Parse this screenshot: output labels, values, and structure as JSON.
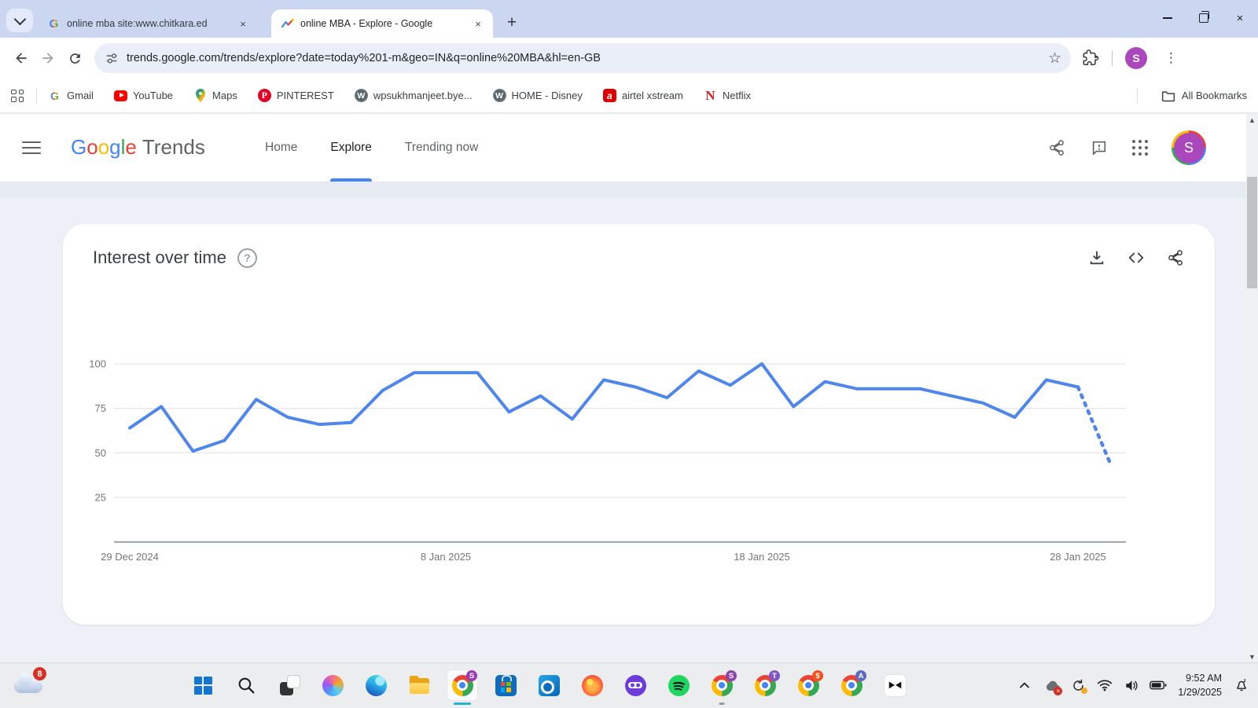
{
  "browser": {
    "tabs": [
      {
        "title": "online mba site:www.chitkara.ed",
        "favicon": "google-favicon",
        "active": false
      },
      {
        "title": "online MBA - Explore - Google",
        "favicon": "trends-favicon",
        "active": true
      }
    ],
    "url": "trends.google.com/trends/explore?date=today%201-m&geo=IN&q=online%20MBA&hl=en-GB",
    "avatar_letter": "S",
    "avatar_color": "#ab47bc",
    "window_controls": [
      "minimize",
      "maximize",
      "close"
    ],
    "toolbar_icons": [
      "back-icon",
      "forward-icon",
      "reload-icon",
      "site-info-icon",
      "bookmark-star-icon",
      "extensions-icon",
      "menu-kebab-icon"
    ],
    "bookmarks": [
      {
        "label": "Gmail",
        "icon": "gmail"
      },
      {
        "label": "YouTube",
        "icon": "youtube"
      },
      {
        "label": "Maps",
        "icon": "maps"
      },
      {
        "label": "PINTEREST",
        "icon": "pinterest"
      },
      {
        "label": "wpsukhmanjeet.bye...",
        "icon": "wordpress"
      },
      {
        "label": "HOME - Disney",
        "icon": "wordpress"
      },
      {
        "label": "airtel xstream",
        "icon": "airtel"
      },
      {
        "label": "Netflix",
        "icon": "netflix"
      }
    ],
    "all_bookmarks_label": "All Bookmarks"
  },
  "trends_header": {
    "logo_google": "Google",
    "logo_trends": "Trends",
    "logo_colors": [
      "#4285F4",
      "#EA4335",
      "#FBBC05",
      "#4285F4",
      "#34A853",
      "#EA4335"
    ],
    "nav": [
      {
        "label": "Home",
        "active": false
      },
      {
        "label": "Explore",
        "active": true
      },
      {
        "label": "Trending now",
        "active": false
      }
    ],
    "accent_color": "#4285f4",
    "icons": [
      "share-icon",
      "feedback-icon",
      "apps-grid-icon"
    ],
    "avatar_letter": "S",
    "avatar_color": "#ab47bc"
  },
  "card": {
    "title": "Interest over time",
    "icons": [
      "help-icon",
      "download-icon",
      "embed-code-icon",
      "share-icon"
    ]
  },
  "chart_data": {
    "type": "line",
    "title": "Interest over time",
    "series_name": "online MBA",
    "x": [
      "29 Dec 2024",
      "30 Dec 2024",
      "31 Dec 2024",
      "1 Jan 2025",
      "2 Jan 2025",
      "3 Jan 2025",
      "4 Jan 2025",
      "5 Jan 2025",
      "6 Jan 2025",
      "7 Jan 2025",
      "8 Jan 2025",
      "9 Jan 2025",
      "10 Jan 2025",
      "11 Jan 2025",
      "12 Jan 2025",
      "13 Jan 2025",
      "14 Jan 2025",
      "15 Jan 2025",
      "16 Jan 2025",
      "17 Jan 2025",
      "18 Jan 2025",
      "19 Jan 2025",
      "20 Jan 2025",
      "21 Jan 2025",
      "22 Jan 2025",
      "23 Jan 2025",
      "24 Jan 2025",
      "25 Jan 2025",
      "26 Jan 2025",
      "27 Jan 2025",
      "28 Jan 2025",
      "29 Jan 2025"
    ],
    "values": [
      64,
      76,
      51,
      57,
      80,
      70,
      66,
      67,
      85,
      95,
      95,
      95,
      73,
      82,
      69,
      91,
      87,
      81,
      96,
      88,
      100,
      76,
      90,
      86,
      86,
      86,
      82,
      78,
      70,
      91,
      87,
      45
    ],
    "y_ticks": [
      100,
      75,
      50,
      25
    ],
    "ylim": [
      0,
      100
    ],
    "x_tick_labels": [
      "29 Dec 2024",
      "8 Jan 2025",
      "18 Jan 2025",
      "28 Jan 2025"
    ],
    "x_tick_indices": [
      0,
      10,
      20,
      30
    ],
    "grid": true,
    "legend": false,
    "line_color": "#4e86ec",
    "dashed_from_index": 30
  },
  "taskbar": {
    "weather_badge": "8",
    "apps": [
      {
        "icon": "start"
      },
      {
        "icon": "search"
      },
      {
        "icon": "taskview"
      },
      {
        "icon": "copilot"
      },
      {
        "icon": "edge"
      },
      {
        "icon": "explorer"
      },
      {
        "icon": "chrome",
        "badge": "S",
        "badge_color": "#9c3bb5",
        "active": true
      },
      {
        "icon": "store"
      },
      {
        "icon": "outlook"
      },
      {
        "icon": "firefox"
      },
      {
        "icon": "firefox-private"
      },
      {
        "icon": "spotify"
      },
      {
        "icon": "chrome",
        "badge": "S",
        "badge_color": "#8e44ad",
        "running": true
      },
      {
        "icon": "chrome",
        "badge": "T",
        "badge_color": "#7e57c2"
      },
      {
        "icon": "chrome",
        "badge": "$",
        "badge_color": "#f4511e"
      },
      {
        "icon": "chrome",
        "badge": "A",
        "badge_color": "#5c6bc0"
      },
      {
        "icon": "capcut"
      }
    ],
    "tray_icons": [
      "chevron-up-icon",
      "onedrive-icon",
      "sync-icon",
      "wifi-icon",
      "volume-icon",
      "battery-icon"
    ],
    "time": "9:52 AM",
    "date": "1/29/2025"
  }
}
